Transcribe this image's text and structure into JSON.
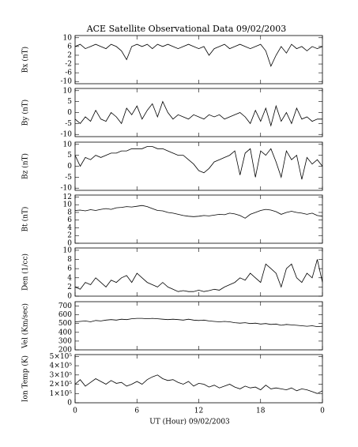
{
  "chart_data": [
    {
      "type": "line",
      "title": "ACE Satellite Observational Data   09/02/2003",
      "ylabel": "Bx (nT)",
      "color": "#000000",
      "xlim": [
        0,
        24
      ],
      "xticks": [
        0,
        6,
        12,
        18,
        {
          "value": 24,
          "label": "0"
        }
      ],
      "ylim": [
        -11,
        11
      ],
      "yticks": [
        -10,
        -6,
        -2,
        2,
        6,
        10
      ],
      "x": [
        0,
        0.5,
        1,
        1.5,
        2,
        2.5,
        3,
        3.5,
        4,
        4.5,
        5,
        5.5,
        6,
        6.5,
        7,
        7.5,
        8,
        8.5,
        9,
        9.5,
        10,
        10.5,
        11,
        11.5,
        12,
        12.5,
        13,
        13.5,
        14,
        14.5,
        15,
        15.5,
        16,
        16.5,
        17,
        17.5,
        18,
        18.5,
        19,
        19.5,
        20,
        20.5,
        21,
        21.5,
        22,
        22.5,
        23,
        23.5,
        24
      ],
      "values": [
        6,
        7,
        5,
        6,
        7,
        6,
        5,
        7,
        6,
        4,
        0,
        6,
        7,
        6,
        7,
        5,
        7,
        6,
        7,
        6,
        5,
        6,
        7,
        6,
        5,
        6,
        2,
        5,
        6,
        7,
        5,
        6,
        7,
        6,
        5,
        6,
        7,
        4,
        -3,
        2,
        6,
        3,
        7,
        5,
        6,
        4,
        6,
        5,
        6
      ]
    },
    {
      "type": "line",
      "ylabel": "By (nT)",
      "color": "#000000",
      "xlim": [
        0,
        24
      ],
      "xticks": [
        0,
        6,
        12,
        18,
        {
          "value": 24,
          "label": "0"
        }
      ],
      "ylim": [
        -11,
        11
      ],
      "yticks": [
        -10,
        -5,
        0,
        5,
        10
      ],
      "x": [
        0,
        0.5,
        1,
        1.5,
        2,
        2.5,
        3,
        3.5,
        4,
        4.5,
        5,
        5.5,
        6,
        6.5,
        7,
        7.5,
        8,
        8.5,
        9,
        9.5,
        10,
        10.5,
        11,
        11.5,
        12,
        12.5,
        13,
        13.5,
        14,
        14.5,
        15,
        15.5,
        16,
        16.5,
        17,
        17.5,
        18,
        18.5,
        19,
        19.5,
        20,
        20.5,
        21,
        21.5,
        22,
        22.5,
        23,
        23.5,
        24
      ],
      "values": [
        -3,
        -5,
        -2,
        -4,
        1,
        -3,
        -4,
        0,
        -2,
        -5,
        2,
        -1,
        3,
        -3,
        1,
        4,
        -2,
        5,
        0,
        -3,
        -1,
        -2,
        -3,
        -1,
        -2,
        -3,
        -1,
        -2,
        -1,
        -3,
        -2,
        -1,
        0,
        -2,
        -5,
        1,
        -4,
        2,
        -6,
        3,
        -4,
        0,
        -5,
        2,
        -3,
        -2,
        -4,
        -3,
        -3
      ]
    },
    {
      "type": "line",
      "ylabel": "Bz (nT)",
      "color": "#000000",
      "xlim": [
        0,
        24
      ],
      "xticks": [
        0,
        6,
        12,
        18,
        {
          "value": 24,
          "label": "0"
        }
      ],
      "ylim": [
        -11,
        11
      ],
      "yticks": [
        -10,
        -5,
        0,
        5,
        10
      ],
      "x": [
        0,
        0.5,
        1,
        1.5,
        2,
        2.5,
        3,
        3.5,
        4,
        4.5,
        5,
        5.5,
        6,
        6.5,
        7,
        7.5,
        8,
        8.5,
        9,
        9.5,
        10,
        10.5,
        11,
        11.5,
        12,
        12.5,
        13,
        13.5,
        14,
        14.5,
        15,
        15.5,
        16,
        16.5,
        17,
        17.5,
        18,
        18.5,
        19,
        19.5,
        20,
        20.5,
        21,
        21.5,
        22,
        22.5,
        23,
        23.5,
        24
      ],
      "values": [
        5,
        0,
        4,
        3,
        5,
        4,
        5,
        6,
        6,
        7,
        7,
        8,
        8,
        8,
        9,
        9,
        8,
        8,
        7,
        6,
        5,
        5,
        3,
        1,
        -2,
        -3,
        -1,
        2,
        3,
        4,
        5,
        7,
        -4,
        6,
        8,
        -5,
        7,
        5,
        8,
        2,
        -5,
        7,
        3,
        5,
        -6,
        4,
        1,
        3,
        0
      ]
    },
    {
      "type": "line",
      "ylabel": "Bt (nT)",
      "color": "#000000",
      "xlim": [
        0,
        24
      ],
      "xticks": [
        0,
        6,
        12,
        18,
        {
          "value": 24,
          "label": "0"
        }
      ],
      "ylim": [
        0,
        12.5
      ],
      "yticks": [
        0,
        2,
        4,
        6,
        8,
        10,
        12
      ],
      "x": [
        0,
        0.5,
        1,
        1.5,
        2,
        2.5,
        3,
        3.5,
        4,
        4.5,
        5,
        5.5,
        6,
        6.5,
        7,
        7.5,
        8,
        8.5,
        9,
        9.5,
        10,
        10.5,
        11,
        11.5,
        12,
        12.5,
        13,
        13.5,
        14,
        14.5,
        15,
        15.5,
        16,
        16.5,
        17,
        17.5,
        18,
        18.5,
        19,
        19.5,
        20,
        20.5,
        21,
        21.5,
        22,
        22.5,
        23,
        23.5,
        24
      ],
      "values": [
        8.5,
        8.6,
        8.4,
        8.7,
        8.5,
        8.8,
        9,
        8.8,
        9.2,
        9.3,
        9.5,
        9.4,
        9.6,
        9.8,
        9.5,
        9,
        8.5,
        8.4,
        8,
        7.8,
        7.5,
        7.2,
        7,
        6.9,
        7,
        7.2,
        7.1,
        7.3,
        7.5,
        7.4,
        7.8,
        7.6,
        7.2,
        6.5,
        7.5,
        8,
        8.5,
        8.8,
        8.6,
        8.2,
        7.5,
        8,
        8.3,
        8,
        7.8,
        7.5,
        7.8,
        7.2,
        7
      ]
    },
    {
      "type": "line",
      "ylabel": "Den (1/cc)",
      "color": "#000000",
      "xlim": [
        0,
        24
      ],
      "xticks": [
        0,
        6,
        12,
        18,
        {
          "value": 24,
          "label": "0"
        }
      ],
      "ylim": [
        0,
        10.5
      ],
      "yticks": [
        0,
        2,
        4,
        6,
        8,
        10
      ],
      "x": [
        0,
        0.5,
        1,
        1.5,
        2,
        2.5,
        3,
        3.5,
        4,
        4.5,
        5,
        5.5,
        6,
        6.5,
        7,
        7.5,
        8,
        8.5,
        9,
        9.5,
        10,
        10.5,
        11,
        11.5,
        12,
        12.5,
        13,
        13.5,
        14,
        14.5,
        15,
        15.5,
        16,
        16.5,
        17,
        17.5,
        18,
        18.5,
        19,
        19.5,
        20,
        20.5,
        21,
        21.5,
        22,
        22.5,
        23,
        23.5,
        24
      ],
      "values": [
        2,
        1.5,
        3,
        2.5,
        4,
        3,
        2,
        3.5,
        3,
        4,
        4.5,
        3,
        5,
        4,
        3,
        2.5,
        2,
        3,
        2,
        1.5,
        1,
        1.2,
        1,
        1,
        1.3,
        1,
        1.2,
        1.5,
        1.3,
        2,
        2.5,
        3,
        4,
        3.5,
        5,
        4,
        3,
        7,
        6,
        5,
        2,
        6,
        7,
        4,
        3,
        5,
        4,
        8,
        3
      ]
    },
    {
      "type": "line",
      "ylabel": "Vel (Km/sec)",
      "color": "#000000",
      "xlim": [
        0,
        24
      ],
      "xticks": [
        0,
        6,
        12,
        18,
        {
          "value": 24,
          "label": "0"
        }
      ],
      "ylim": [
        200,
        750
      ],
      "yticks": [
        200,
        300,
        400,
        500,
        600,
        700
      ],
      "x": [
        0,
        0.5,
        1,
        1.5,
        2,
        2.5,
        3,
        3.5,
        4,
        4.5,
        5,
        5.5,
        6,
        6.5,
        7,
        7.5,
        8,
        8.5,
        9,
        9.5,
        10,
        10.5,
        11,
        11.5,
        12,
        12.5,
        13,
        13.5,
        14,
        14.5,
        15,
        15.5,
        16,
        16.5,
        17,
        17.5,
        18,
        18.5,
        19,
        19.5,
        20,
        20.5,
        21,
        21.5,
        22,
        22.5,
        23,
        23.5,
        24
      ],
      "values": [
        520,
        525,
        530,
        520,
        535,
        530,
        540,
        545,
        540,
        550,
        545,
        555,
        560,
        560,
        555,
        560,
        555,
        550,
        545,
        550,
        545,
        540,
        550,
        540,
        535,
        540,
        530,
        525,
        520,
        525,
        520,
        510,
        505,
        510,
        500,
        505,
        495,
        500,
        490,
        495,
        480,
        490,
        485,
        480,
        475,
        470,
        475,
        465,
        470
      ]
    },
    {
      "type": "line",
      "ylabel": "Ion Temp (K)",
      "xlabel": "UT (Hour)  09/02/2003",
      "color": "#000000",
      "xlim": [
        0,
        24
      ],
      "xticks": [
        0,
        6,
        12,
        18,
        {
          "value": 24,
          "label": "0"
        }
      ],
      "ylim": [
        0,
        520000
      ],
      "yticks": [
        0,
        {
          "value": 100000,
          "label": "1×10⁵"
        },
        {
          "value": 200000,
          "label": "2×10⁵"
        },
        {
          "value": 300000,
          "label": "3×10⁵"
        },
        {
          "value": 400000,
          "label": "4×10⁵"
        },
        {
          "value": 500000,
          "label": "5×10⁵"
        }
      ],
      "x": [
        0,
        0.5,
        1,
        1.5,
        2,
        2.5,
        3,
        3.5,
        4,
        4.5,
        5,
        5.5,
        6,
        6.5,
        7,
        7.5,
        8,
        8.5,
        9,
        9.5,
        10,
        10.5,
        11,
        11.5,
        12,
        12.5,
        13,
        13.5,
        14,
        14.5,
        15,
        15.5,
        16,
        16.5,
        17,
        17.5,
        18,
        18.5,
        19,
        19.5,
        20,
        20.5,
        21,
        21.5,
        22,
        22.5,
        23,
        23.5,
        24
      ],
      "values": [
        200000,
        250000,
        180000,
        220000,
        260000,
        230000,
        200000,
        240000,
        210000,
        220000,
        180000,
        200000,
        230000,
        200000,
        250000,
        280000,
        300000,
        260000,
        240000,
        250000,
        220000,
        200000,
        230000,
        180000,
        210000,
        200000,
        170000,
        190000,
        160000,
        180000,
        200000,
        170000,
        150000,
        180000,
        160000,
        170000,
        140000,
        190000,
        150000,
        160000,
        150000,
        140000,
        160000,
        130000,
        150000,
        140000,
        120000,
        100000,
        130000
      ]
    }
  ]
}
